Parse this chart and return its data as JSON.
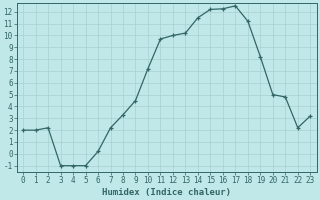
{
  "x_data": [
    0,
    1,
    2,
    3,
    4,
    5,
    6,
    7,
    8,
    9,
    10,
    11,
    12,
    13,
    14,
    15,
    16,
    17,
    18,
    19,
    20,
    21,
    22,
    23
  ],
  "y_data": [
    2,
    2,
    2.2,
    -1,
    -1,
    -1,
    0.2,
    2.2,
    3.3,
    4.5,
    7.2,
    9.7,
    10,
    10.2,
    11.5,
    12.2,
    12.25,
    12.5,
    11.2,
    8.2,
    5.0,
    4.8,
    2.2,
    3.2
  ],
  "line_color": "#336666",
  "bg_color": "#c0e8e8",
  "grid_major_color": "#a8d0d0",
  "grid_minor_color": "#b8dcdc",
  "xlabel": "Humidex (Indice chaleur)",
  "xlim": [
    -0.5,
    23.5
  ],
  "ylim": [
    -1.5,
    12.7
  ],
  "yticks": [
    -1,
    0,
    1,
    2,
    3,
    4,
    5,
    6,
    7,
    8,
    9,
    10,
    11,
    12
  ],
  "xticks": [
    0,
    1,
    2,
    3,
    4,
    5,
    6,
    7,
    8,
    9,
    10,
    11,
    12,
    13,
    14,
    15,
    16,
    17,
    18,
    19,
    20,
    21,
    22,
    23
  ],
  "tick_fontsize": 5.5,
  "xlabel_fontsize": 6.5
}
